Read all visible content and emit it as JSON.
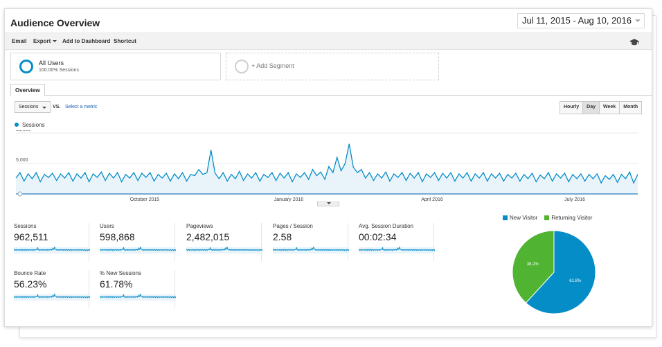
{
  "header": {
    "title": "Audience Overview",
    "date_range": "Jul 11, 2015 - Aug 10, 2016"
  },
  "toolbar": {
    "email": "Email",
    "export": "Export",
    "add_to_dashboard": "Add to Dashboard",
    "shortcut": "Shortcut",
    "icon": "graduation-cap-icon"
  },
  "segments": {
    "all_users_name": "All Users",
    "all_users_sub": "100.00% Sessions",
    "add_segment": "+ Add Segment"
  },
  "tabs": {
    "overview": "Overview"
  },
  "controls": {
    "metric": "Sessions",
    "vs": "VS.",
    "select_metric": "Select a metric",
    "granularity": [
      "Hourly",
      "Day",
      "Week",
      "Month"
    ],
    "active_granularity": "Day"
  },
  "chart_data": {
    "type": "line",
    "series": [
      {
        "name": "Sessions",
        "color": "#058dc7",
        "values": [
          2600,
          3500,
          2100,
          3300,
          2500,
          3500,
          2000,
          3200,
          2700,
          3400,
          2200,
          3300,
          2600,
          3500,
          2100,
          3300,
          2600,
          3500,
          2000,
          3300,
          2700,
          3600,
          2200,
          3400,
          2600,
          3500,
          2000,
          3200,
          2600,
          3500,
          2200,
          3400,
          2700,
          3500,
          2100,
          3200,
          2600,
          3400,
          2100,
          3300,
          2500,
          3500,
          2100,
          3200,
          3000,
          4000,
          3200,
          3500,
          7200,
          3400,
          2500,
          3500,
          2100,
          3200,
          2500,
          3700,
          2200,
          3300,
          2600,
          3500,
          2100,
          3200,
          2700,
          3500,
          2200,
          3400,
          2600,
          3500,
          2000,
          3300,
          2700,
          3500,
          2400,
          4000,
          3000,
          3600,
          2400,
          4500,
          3500,
          6000,
          3800,
          5000,
          8200,
          4400,
          3500,
          4000,
          2600,
          3500,
          2200,
          3300,
          2600,
          3600,
          2100,
          3300,
          2700,
          3500,
          2200,
          3400,
          2600,
          3500,
          2000,
          3300,
          2700,
          3500,
          2200,
          3400,
          2600,
          3500,
          2100,
          3300,
          2600,
          3500,
          2100,
          3300,
          2600,
          3500,
          2100,
          3300,
          2600,
          3400,
          2100,
          3200,
          2600,
          3400,
          2100,
          3200,
          2500,
          3400,
          2000,
          3100,
          2500,
          3500,
          2100,
          3300,
          2600,
          3400,
          2000,
          3200,
          2500,
          3300,
          2100,
          3200,
          2500,
          3300,
          1800,
          3000,
          2400,
          3200,
          1900,
          3200,
          2500,
          3600,
          1800,
          3200
        ]
      }
    ],
    "y_ticks": [
      "10,000",
      "5,000"
    ],
    "ylim": [
      0,
      10000
    ],
    "x_ticks": [
      "October 2015",
      "January 2016",
      "April 2016",
      "July 2016"
    ],
    "grid": true
  },
  "stats": [
    {
      "label": "Sessions",
      "value": "962,511"
    },
    {
      "label": "Users",
      "value": "598,868"
    },
    {
      "label": "Pageviews",
      "value": "2,482,015"
    },
    {
      "label": "Pages / Session",
      "value": "2.58"
    },
    {
      "label": "Avg. Session Duration",
      "value": "00:02:34"
    },
    {
      "label": "Bounce Rate",
      "value": "56.23%"
    },
    {
      "label": "% New Sessions",
      "value": "61.78%"
    }
  ],
  "pie": {
    "type": "pie",
    "legend": [
      "New Visitor",
      "Returning Visitor"
    ],
    "slices": [
      {
        "name": "New Visitor",
        "value": 61.8,
        "label": "61.8%",
        "color": "#058dc7"
      },
      {
        "name": "Returning Visitor",
        "value": 38.2,
        "label": "38.2%",
        "color": "#50b432"
      }
    ]
  }
}
